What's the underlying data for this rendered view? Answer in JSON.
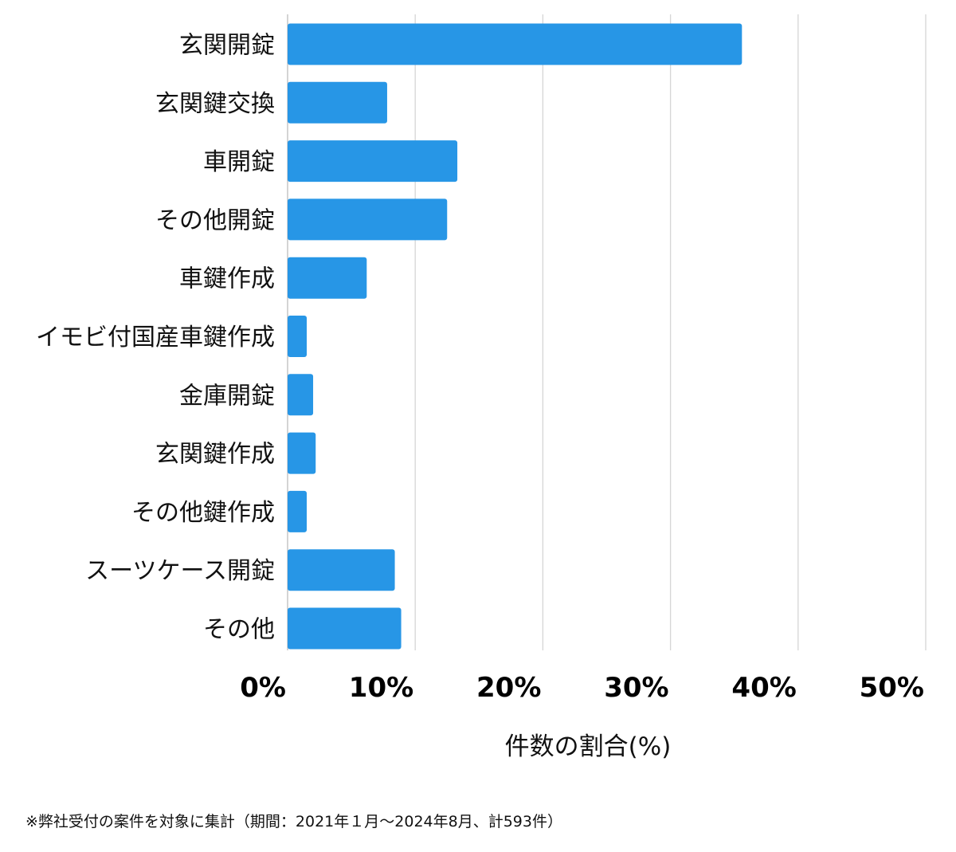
{
  "chart_data": {
    "type": "bar",
    "orientation": "horizontal",
    "categories": [
      "玄関開錠",
      "玄関鍵交換",
      "車開錠",
      "その他開錠",
      "車鍵作成",
      "イモビ付国産車鍵作成",
      "金庫開錠",
      "玄関鍵作成",
      "その他鍵作成",
      "スーツケース開錠",
      "その他"
    ],
    "values": [
      35.6,
      7.8,
      13.3,
      12.5,
      6.2,
      1.5,
      2.0,
      2.2,
      1.5,
      8.4,
      8.9
    ],
    "xlabel": "件数の割合(%)",
    "ylabel": "",
    "xlim": [
      0,
      50
    ],
    "xticks": [
      "0%",
      "10%",
      "20%",
      "30%",
      "40%",
      "50%"
    ],
    "bar_color": "#2796E6",
    "grid": true
  },
  "footnote": "※弊社受付の案件を対象に集計（期間：2021年１月〜2024年8月、計593件）"
}
